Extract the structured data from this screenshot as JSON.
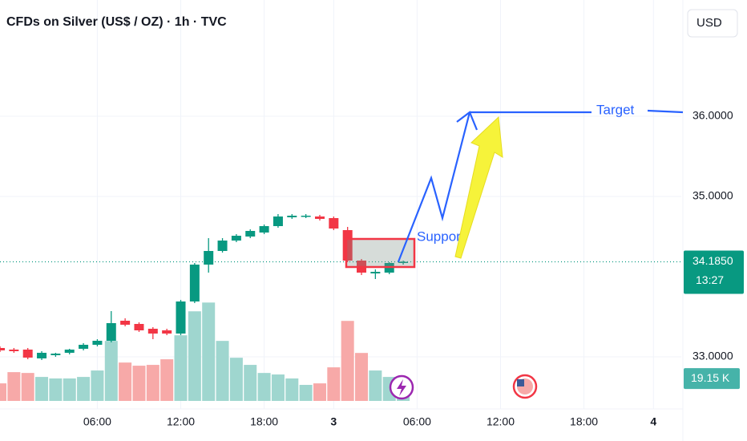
{
  "header": {
    "title": "CFDs on Silver (US$ / OZ) · 1h · TVC",
    "currency": "USD"
  },
  "chart_data": {
    "type": "candlestick",
    "x": [
      0,
      1,
      2,
      3,
      4,
      5,
      6,
      7,
      8,
      9,
      10,
      11,
      12,
      13,
      14,
      15,
      16,
      17,
      18,
      19,
      20,
      21,
      22,
      23,
      24,
      25,
      26,
      27,
      28,
      29
    ],
    "open": [
      33.11,
      33.09,
      33.09,
      32.98,
      33.02,
      33.05,
      33.1,
      33.15,
      33.2,
      33.45,
      33.41,
      33.35,
      33.33,
      33.29,
      33.69,
      34.15,
      34.32,
      34.45,
      34.5,
      34.55,
      34.63,
      34.74,
      34.75,
      34.75,
      34.73,
      34.58,
      34.2,
      34.04,
      34.05,
      34.17
    ],
    "high": [
      33.13,
      33.11,
      33.11,
      33.07,
      33.05,
      33.1,
      33.17,
      33.22,
      33.57,
      33.48,
      33.43,
      33.37,
      33.35,
      33.71,
      34.17,
      34.48,
      34.48,
      34.53,
      34.59,
      34.65,
      34.78,
      34.78,
      34.78,
      34.77,
      34.75,
      34.62,
      34.22,
      34.09,
      34.18,
      34.2
    ],
    "low": [
      33.06,
      33.05,
      32.97,
      32.96,
      33.0,
      33.03,
      33.08,
      33.13,
      33.18,
      33.38,
      33.31,
      33.22,
      33.27,
      33.27,
      33.67,
      34.05,
      34.3,
      34.43,
      34.48,
      34.53,
      34.61,
      34.72,
      34.73,
      34.7,
      34.58,
      34.18,
      34.02,
      33.97,
      34.03,
      34.15
    ],
    "close": [
      33.08,
      33.07,
      32.99,
      33.05,
      33.04,
      33.09,
      33.15,
      33.2,
      33.42,
      33.4,
      33.33,
      33.29,
      33.29,
      33.69,
      34.15,
      34.32,
      34.45,
      34.51,
      34.57,
      34.63,
      34.75,
      34.76,
      34.76,
      34.72,
      34.6,
      34.2,
      34.05,
      34.06,
      34.17,
      34.185
    ],
    "volume": [
      15.0,
      24.6,
      23.9,
      20.5,
      19.2,
      19.2,
      20.5,
      26.0,
      51.3,
      32.8,
      30.1,
      30.8,
      35.6,
      56.1,
      76.6,
      84.1,
      51.3,
      36.9,
      30.8,
      23.9,
      22.6,
      19.2,
      13.7,
      15.0,
      28.7,
      68.4,
      41.0,
      26.0,
      20.5,
      19.15
    ],
    "volume_label": "19.15 K",
    "volume_lim": [
      0,
      85
    ],
    "up_color": "#089981",
    "down_color": "#f23645",
    "volume_up_color": "#9fd6cf",
    "volume_down_color": "#f7a9a8",
    "xlim": [
      0,
      49
    ],
    "xticks": [
      {
        "value": 7,
        "label": "06:00"
      },
      {
        "value": 13,
        "label": "12:00"
      },
      {
        "value": 19,
        "label": "18:00"
      },
      {
        "value": 24,
        "label": "3"
      },
      {
        "value": 30,
        "label": "06:00"
      },
      {
        "value": 36,
        "label": "12:00"
      },
      {
        "value": 42,
        "label": "18:00"
      },
      {
        "value": 47,
        "label": "4"
      }
    ],
    "ylim": [
      32.35,
      37.45
    ],
    "yticks": [
      {
        "value": 33,
        "label": "33.0000"
      },
      {
        "value": 35,
        "label": "35.0000"
      },
      {
        "value": 36,
        "label": "36.0000"
      }
    ],
    "grid": true,
    "last_price": {
      "value": 34.185,
      "label": "34.1850"
    },
    "countdown": "13:27",
    "support_zone": [
      34.12,
      34.47
    ],
    "support_label": "Support",
    "target": 36.05,
    "target_label": "Target"
  }
}
